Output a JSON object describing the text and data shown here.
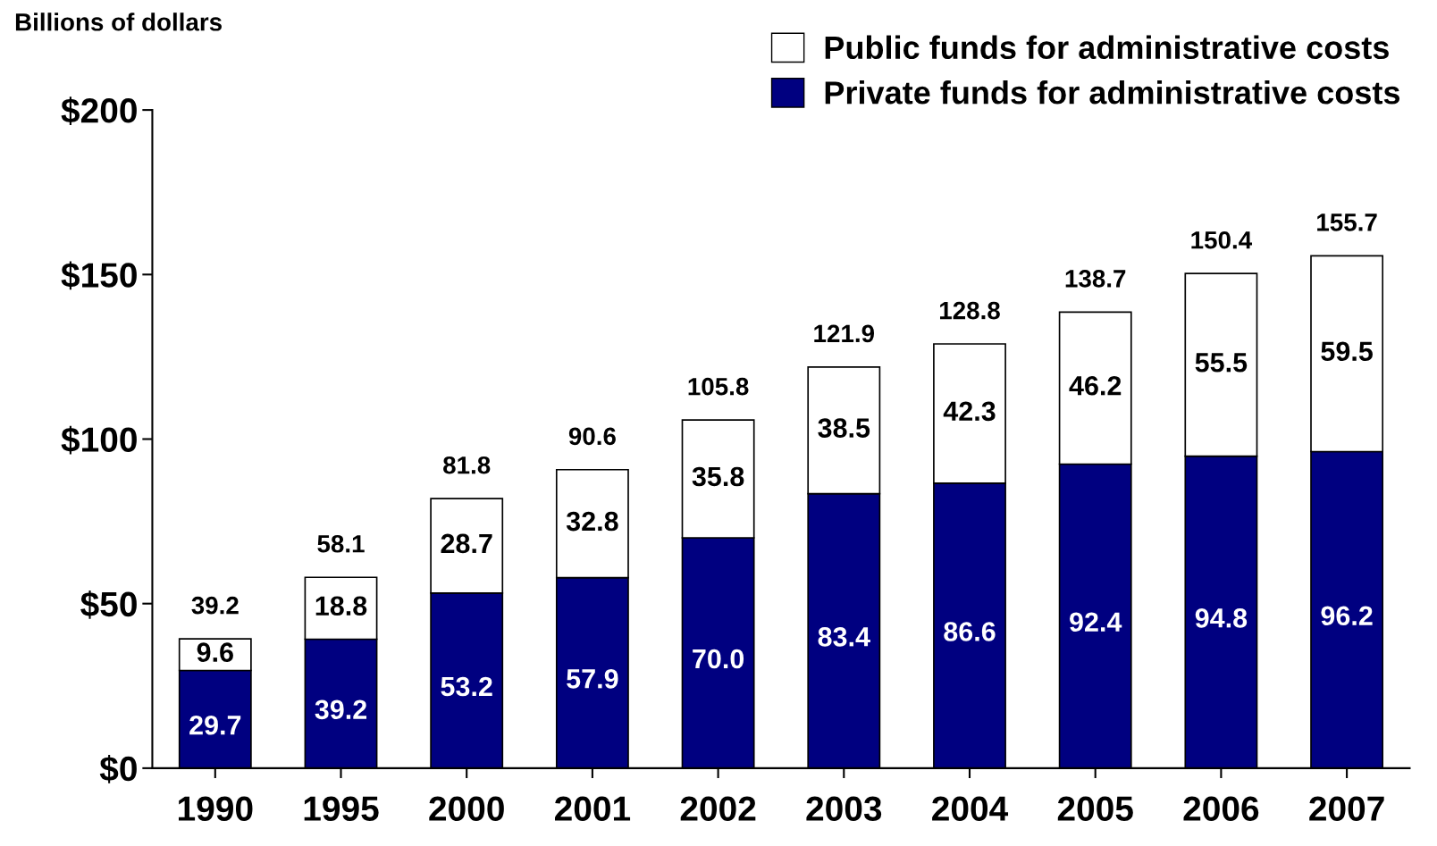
{
  "chart_data": {
    "type": "bar",
    "stacked": true,
    "ylabel": "Billions of dollars",
    "categories": [
      "1990",
      "1995",
      "2000",
      "2001",
      "2002",
      "2003",
      "2004",
      "2005",
      "2006",
      "2007"
    ],
    "series": [
      {
        "name": "Private funds for administrative costs",
        "color": "#000080",
        "values": [
          29.7,
          39.2,
          53.2,
          57.9,
          70.0,
          83.4,
          86.6,
          92.4,
          94.8,
          96.2
        ],
        "value_labels": [
          "29.7",
          "39.2",
          "53.2",
          "57.9",
          "70.0",
          "83.4",
          "86.6",
          "92.4",
          "94.8",
          "96.2"
        ]
      },
      {
        "name": "Public funds for administrative costs",
        "color": "#ffffff",
        "values": [
          9.6,
          18.8,
          28.7,
          32.8,
          35.8,
          38.5,
          42.3,
          46.2,
          55.5,
          59.5
        ],
        "value_labels": [
          "9.6",
          "18.8",
          "28.7",
          "32.8",
          "35.8",
          "38.5",
          "42.3",
          "46.2",
          "55.5",
          "59.5"
        ]
      }
    ],
    "totals": [
      "39.2",
      "58.1",
      "81.8",
      "90.6",
      "105.8",
      "121.9",
      "128.8",
      "138.7",
      "150.4",
      "155.7"
    ],
    "ylim": [
      0,
      200
    ],
    "yticks": [
      {
        "value": 0,
        "label": "$0"
      },
      {
        "value": 50,
        "label": "$50"
      },
      {
        "value": 100,
        "label": "$100"
      },
      {
        "value": 150,
        "label": "$150"
      },
      {
        "value": 200,
        "label": "$200"
      }
    ],
    "grid": false,
    "legend": "top right"
  }
}
